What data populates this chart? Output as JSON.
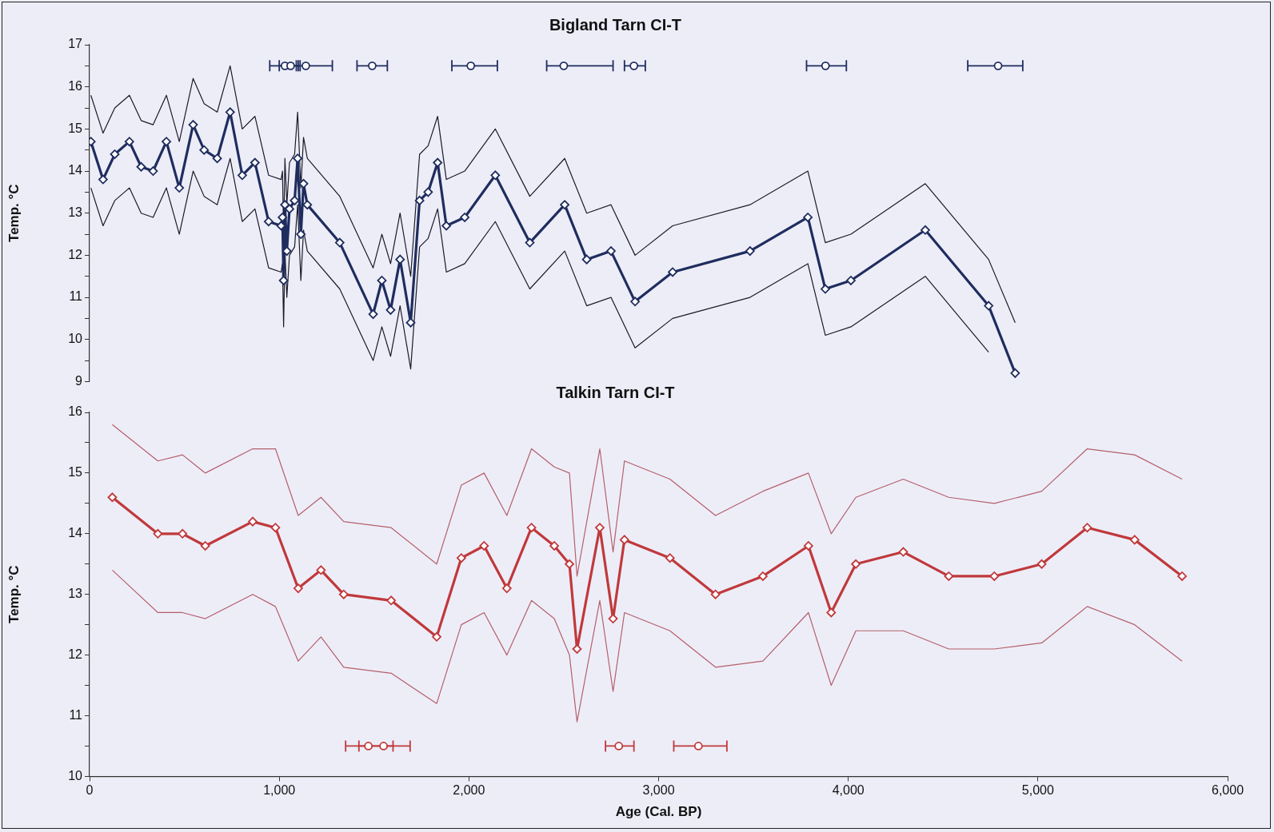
{
  "chart_data": [
    {
      "type": "line",
      "title": "Bigland Tarn CI-T",
      "ylabel": "Temp. °C",
      "xlim": [
        0,
        6000
      ],
      "ylim": [
        9,
        17
      ],
      "yticks": [
        9,
        {
          "value": 9.5,
          "label": null
        },
        10,
        {
          "value": 10.5,
          "label": null
        },
        11,
        {
          "value": 11.5,
          "label": null
        },
        12,
        {
          "value": 12.5,
          "label": null
        },
        13,
        {
          "value": 13.5,
          "label": null
        },
        14,
        {
          "value": 14.5,
          "label": null
        },
        15,
        {
          "value": 15.5,
          "label": null
        },
        16,
        {
          "value": 16.5,
          "label": null
        },
        17
      ],
      "tick_labels": "y",
      "marker": "diamond",
      "series": [
        {
          "marker": "none",
          "color": "#1a1a2a",
          "x": [
            7,
            71,
            133,
            210,
            272,
            335,
            405,
            473,
            546,
            604,
            673,
            741,
            805,
            872,
            944,
            1010,
            1017,
            1023,
            1030,
            1040,
            1054,
            1081,
            1097,
            1114,
            1128,
            1148,
            1319,
            1495,
            1541,
            1587,
            1637,
            1693,
            1740,
            1785,
            1835,
            1881,
            1978,
            2139,
            2321,
            2505,
            2621,
            2749,
            2876,
            3074,
            3482,
            3787,
            3879,
            4014,
            4406,
            4740,
            4880
          ],
          "values": [
            15.8,
            14.9,
            15.5,
            15.8,
            15.2,
            15.1,
            15.8,
            14.7,
            16.2,
            15.6,
            15.4,
            16.5,
            15.0,
            15.3,
            13.9,
            13.8,
            14.0,
            12.5,
            14.3,
            13.2,
            14.2,
            14.4,
            15.4,
            13.6,
            14.8,
            14.3,
            13.4,
            11.7,
            12.5,
            11.8,
            13.0,
            11.5,
            14.4,
            14.6,
            15.3,
            13.8,
            14.0,
            15.0,
            13.4,
            14.3,
            13.0,
            13.2,
            12.0,
            12.7,
            13.2,
            14.0,
            12.3,
            12.5,
            13.7,
            11.9,
            10.4
          ]
        },
        {
          "marker": "none",
          "color": "#1a1a2a",
          "x": [
            7,
            71,
            133,
            210,
            272,
            335,
            405,
            473,
            546,
            604,
            673,
            741,
            805,
            872,
            944,
            1010,
            1017,
            1023,
            1030,
            1040,
            1054,
            1081,
            1097,
            1114,
            1128,
            1148,
            1319,
            1495,
            1541,
            1587,
            1637,
            1693,
            1740,
            1785,
            1835,
            1881,
            1978,
            2139,
            2321,
            2505,
            2621,
            2749,
            2876,
            3074,
            3482,
            3787,
            3879,
            4014,
            4406,
            4740
          ],
          "values": [
            13.6,
            12.7,
            13.3,
            13.6,
            13.0,
            12.9,
            13.6,
            12.5,
            14.0,
            13.4,
            13.2,
            14.3,
            12.8,
            13.1,
            11.7,
            11.6,
            11.8,
            10.3,
            12.1,
            11.0,
            12.0,
            12.2,
            13.2,
            11.4,
            12.6,
            12.1,
            11.2,
            9.5,
            10.3,
            9.6,
            10.8,
            9.3,
            12.2,
            12.4,
            13.1,
            11.6,
            11.8,
            12.8,
            11.2,
            12.1,
            10.8,
            11.0,
            9.8,
            10.5,
            11.0,
            11.8,
            10.1,
            10.3,
            11.5,
            9.7
          ]
        },
        {
          "color": "#1f2d5e",
          "x": [
            7,
            71,
            133,
            210,
            272,
            335,
            405,
            473,
            546,
            604,
            673,
            741,
            805,
            872,
            944,
            1010,
            1017,
            1023,
            1030,
            1040,
            1054,
            1081,
            1097,
            1114,
            1128,
            1148,
            1319,
            1495,
            1541,
            1587,
            1637,
            1693,
            1740,
            1785,
            1835,
            1881,
            1978,
            2139,
            2321,
            2505,
            2621,
            2749,
            2876,
            3074,
            3482,
            3787,
            3879,
            4014,
            4406,
            4740,
            4880
          ],
          "values": [
            14.7,
            13.8,
            14.4,
            14.7,
            14.1,
            14.0,
            14.7,
            13.6,
            15.1,
            14.5,
            14.3,
            15.4,
            13.9,
            14.2,
            12.8,
            12.7,
            12.9,
            11.4,
            13.2,
            12.1,
            13.1,
            13.3,
            14.3,
            12.5,
            13.7,
            13.2,
            12.3,
            10.6,
            11.4,
            10.7,
            11.9,
            10.4,
            13.3,
            13.5,
            14.2,
            12.7,
            12.9,
            13.9,
            12.3,
            13.2,
            11.9,
            12.1,
            10.9,
            11.6,
            12.1,
            12.9,
            11.2,
            11.4,
            12.6,
            10.8,
            9.2
          ]
        },
        {
          "type": "scatter",
          "marker": "circle",
          "color": "#1f2d5e",
          "x": [
            1030,
            1060,
            1140,
            1490,
            2010,
            2500,
            2870,
            3880,
            4790
          ],
          "values": [
            16.5,
            16.5,
            16.5,
            16.5,
            16.5,
            16.5,
            16.5,
            16.5,
            16.5
          ],
          "xerrors": [
            [
              950,
              1100
            ],
            [
              1000,
              1110
            ],
            [
              1090,
              1280
            ],
            [
              1410,
              1570
            ],
            [
              1910,
              2150
            ],
            [
              2410,
              2760
            ],
            [
              2820,
              2930
            ],
            [
              3780,
              3990
            ],
            [
              4630,
              4920
            ]
          ]
        }
      ]
    },
    {
      "type": "line",
      "title": "Talkin Tarn CI-T",
      "xlabel": "Age (Cal. BP)",
      "ylabel": "Temp. °C",
      "xlim": [
        0,
        6000
      ],
      "xticks": [
        0,
        {
          "value": 1000,
          "label": "1,000"
        },
        {
          "value": 2000,
          "label": "2,000"
        },
        {
          "value": 3000,
          "label": "3,000"
        },
        {
          "value": 4000,
          "label": "4,000"
        },
        {
          "value": 5000,
          "label": "5,000"
        },
        {
          "value": 6000,
          "label": "6,000"
        }
      ],
      "ylim": [
        10,
        16
      ],
      "yticks": [
        10,
        {
          "value": 10.5,
          "label": null
        },
        11,
        {
          "value": 11.5,
          "label": null
        },
        12,
        {
          "value": 12.5,
          "label": null
        },
        13,
        {
          "value": 13.5,
          "label": null
        },
        14,
        {
          "value": 14.5,
          "label": null
        },
        15,
        {
          "value": 15.5,
          "label": null
        },
        16
      ],
      "marker": "diamond",
      "series": [
        {
          "marker": "none",
          "color": "#b4606a",
          "x": [
            120,
            360,
            490,
            610,
            860,
            980,
            1100,
            1220,
            1340,
            1590,
            1830,
            1960,
            2080,
            2200,
            2330,
            2450,
            2530,
            2570,
            2690,
            2760,
            2820,
            3060,
            3300,
            3550,
            3790,
            3910,
            4040,
            4290,
            4530,
            4770,
            5020,
            5260,
            5510,
            5760
          ],
          "values": [
            15.8,
            15.2,
            15.3,
            15.0,
            15.4,
            15.4,
            14.3,
            14.6,
            14.2,
            14.1,
            13.5,
            14.8,
            15.0,
            14.3,
            15.4,
            15.1,
            15.0,
            13.3,
            15.4,
            13.7,
            15.2,
            14.9,
            14.3,
            14.7,
            15.0,
            14.0,
            14.6,
            14.9,
            14.6,
            14.5,
            14.7,
            15.4,
            15.3,
            14.9
          ]
        },
        {
          "marker": "none",
          "color": "#b4606a",
          "x": [
            120,
            360,
            490,
            610,
            860,
            980,
            1100,
            1220,
            1340,
            1590,
            1830,
            1960,
            2080,
            2200,
            2330,
            2450,
            2530,
            2570,
            2690,
            2760,
            2820,
            3060,
            3300,
            3550,
            3790,
            3910,
            4040,
            4290,
            4530,
            4770,
            5020,
            5260,
            5510,
            5760
          ],
          "values": [
            13.4,
            12.7,
            12.7,
            12.6,
            13.0,
            12.8,
            11.9,
            12.3,
            11.8,
            11.7,
            11.2,
            12.5,
            12.7,
            12.0,
            12.9,
            12.6,
            12.0,
            10.9,
            12.9,
            11.4,
            12.7,
            12.4,
            11.8,
            11.9,
            12.7,
            11.5,
            12.4,
            12.4,
            12.1,
            12.1,
            12.2,
            12.8,
            12.5,
            11.9
          ]
        },
        {
          "color": "#c0393b",
          "x": [
            120,
            360,
            490,
            610,
            860,
            980,
            1100,
            1220,
            1340,
            1590,
            1830,
            1960,
            2080,
            2200,
            2330,
            2450,
            2530,
            2570,
            2690,
            2760,
            2820,
            3060,
            3300,
            3550,
            3790,
            3910,
            4040,
            4290,
            4530,
            4770,
            5020,
            5260,
            5510,
            5760
          ],
          "values": [
            14.6,
            14.0,
            14.0,
            13.8,
            14.2,
            14.1,
            13.1,
            13.4,
            13.0,
            12.9,
            12.3,
            13.6,
            13.8,
            13.1,
            14.1,
            13.8,
            13.5,
            12.1,
            14.1,
            12.6,
            13.9,
            13.6,
            13.0,
            13.3,
            13.8,
            12.7,
            13.5,
            13.7,
            13.3,
            13.3,
            13.5,
            14.1,
            13.9,
            13.3
          ]
        },
        {
          "type": "scatter",
          "marker": "circle",
          "color": "#c0393b",
          "x": [
            1470,
            1550,
            2790,
            3210
          ],
          "values": [
            10.5,
            10.5,
            10.5,
            10.5
          ],
          "xerrors": [
            [
              1350,
              1600
            ],
            [
              1420,
              1690
            ],
            [
              2720,
              2870
            ],
            [
              3080,
              3360
            ]
          ]
        }
      ]
    }
  ]
}
